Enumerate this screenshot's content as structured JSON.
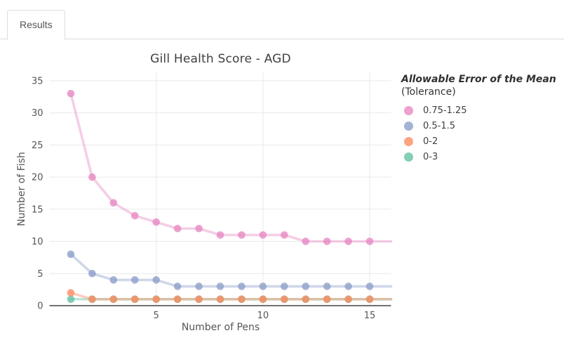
{
  "tabs": {
    "results_label": "Results"
  },
  "chart_data": {
    "type": "line",
    "title": "Gill Health Score - AGD",
    "xlabel": "Number of Pens",
    "ylabel": "Number of Fish",
    "legend_title": "Allowable Error of the Mean",
    "legend_subtitle": "(Tolerance)",
    "legend_position": "right",
    "grid": true,
    "x": [
      1,
      2,
      3,
      4,
      5,
      6,
      7,
      8,
      9,
      10,
      11,
      12,
      13,
      14,
      15
    ],
    "xticks": [
      5,
      10,
      15
    ],
    "yticks": [
      0,
      5,
      10,
      15,
      20,
      25,
      30,
      35
    ],
    "xlim": [
      0,
      16
    ],
    "ylim": [
      0,
      36.3
    ],
    "series": [
      {
        "name": "0.75-1.25",
        "color": "#e78ac3",
        "values": [
          33,
          20,
          16,
          14,
          13,
          12,
          12,
          11,
          11,
          11,
          11,
          10,
          10,
          10,
          10
        ]
      },
      {
        "name": "0.5-1.5",
        "color": "#8da0cb",
        "values": [
          8,
          5,
          4,
          4,
          4,
          3,
          3,
          3,
          3,
          3,
          3,
          3,
          3,
          3,
          3
        ]
      },
      {
        "name": "0-2",
        "color": "#fc8d62",
        "values": [
          2,
          1,
          1,
          1,
          1,
          1,
          1,
          1,
          1,
          1,
          1,
          1,
          1,
          1,
          1
        ]
      },
      {
        "name": "0-3",
        "color": "#66c2a5",
        "values": [
          1,
          1,
          1,
          1,
          1,
          1,
          1,
          1,
          1,
          1,
          1,
          1,
          1,
          1,
          1
        ]
      }
    ],
    "style": {
      "grid_color": "#e9e9e9",
      "axis_line_color": "#444444",
      "tick_label_color": "#555555",
      "marker_opacity": 0.8,
      "line_opacity": 0.42
    }
  }
}
